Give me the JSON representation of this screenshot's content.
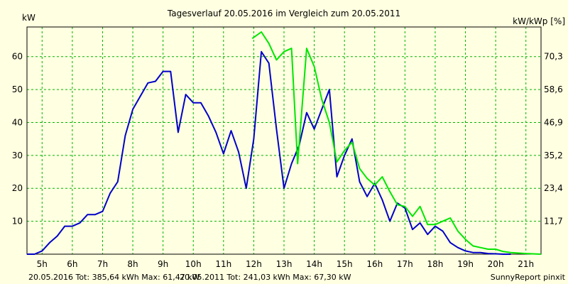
{
  "chart_data": {
    "type": "line",
    "title": "Tagesverlauf 20.05.2016 im Vergleich zum 20.05.2011",
    "ylabel_left": "kW",
    "ylabel_right": "kW/kWp [%]",
    "xlim": [
      4.5,
      21.5
    ],
    "ylim": [
      0,
      69
    ],
    "grid": true,
    "x_ticks": [
      {
        "v": 5,
        "label": "5h"
      },
      {
        "v": 6,
        "label": "6h"
      },
      {
        "v": 7,
        "label": "7h"
      },
      {
        "v": 8,
        "label": "8h"
      },
      {
        "v": 9,
        "label": "9h"
      },
      {
        "v": 10,
        "label": "10h"
      },
      {
        "v": 11,
        "label": "11h"
      },
      {
        "v": 12,
        "label": "12h"
      },
      {
        "v": 13,
        "label": "13h"
      },
      {
        "v": 14,
        "label": "14h"
      },
      {
        "v": 15,
        "label": "15h"
      },
      {
        "v": 16,
        "label": "16h"
      },
      {
        "v": 17,
        "label": "17h"
      },
      {
        "v": 18,
        "label": "18h"
      },
      {
        "v": 19,
        "label": "19h"
      },
      {
        "v": 20,
        "label": "20h"
      },
      {
        "v": 21,
        "label": "21h"
      }
    ],
    "y_ticks_left": [
      {
        "v": 10,
        "label": "10"
      },
      {
        "v": 20,
        "label": "20"
      },
      {
        "v": 30,
        "label": "30"
      },
      {
        "v": 40,
        "label": "40"
      },
      {
        "v": 50,
        "label": "50"
      },
      {
        "v": 60,
        "label": "60"
      }
    ],
    "y_ticks_right": [
      {
        "v": 10,
        "label": "11,7"
      },
      {
        "v": 20,
        "label": "23,4"
      },
      {
        "v": 30,
        "label": "35,2"
      },
      {
        "v": 40,
        "label": "46,9"
      },
      {
        "v": 50,
        "label": "58,6"
      },
      {
        "v": 60,
        "label": "70,3"
      }
    ],
    "series": [
      {
        "name": "20.05.2016",
        "color": "#0000c8",
        "points": [
          [
            4.5,
            0
          ],
          [
            4.75,
            0
          ],
          [
            5.0,
            1
          ],
          [
            5.25,
            3.5
          ],
          [
            5.5,
            5.5
          ],
          [
            5.75,
            8.5
          ],
          [
            6.0,
            8.5
          ],
          [
            6.25,
            9.5
          ],
          [
            6.5,
            12
          ],
          [
            6.75,
            12
          ],
          [
            7.0,
            13
          ],
          [
            7.25,
            18.5
          ],
          [
            7.5,
            22
          ],
          [
            7.75,
            36
          ],
          [
            8.0,
            44
          ],
          [
            8.25,
            48
          ],
          [
            8.5,
            52
          ],
          [
            8.75,
            52.5
          ],
          [
            9.0,
            55.5
          ],
          [
            9.25,
            55.5
          ],
          [
            9.5,
            37
          ],
          [
            9.75,
            48.5
          ],
          [
            10.0,
            46
          ],
          [
            10.25,
            46
          ],
          [
            10.5,
            42
          ],
          [
            10.75,
            37
          ],
          [
            11.0,
            30.5
          ],
          [
            11.25,
            37.5
          ],
          [
            11.5,
            31
          ],
          [
            11.75,
            20
          ],
          [
            12.0,
            35
          ],
          [
            12.25,
            61.5
          ],
          [
            12.5,
            58
          ],
          [
            12.75,
            38
          ],
          [
            13.0,
            20
          ],
          [
            13.25,
            27.5
          ],
          [
            13.5,
            33
          ],
          [
            13.75,
            43
          ],
          [
            14.0,
            38
          ],
          [
            14.25,
            44
          ],
          [
            14.5,
            50
          ],
          [
            14.75,
            23.5
          ],
          [
            15.0,
            30
          ],
          [
            15.25,
            35
          ],
          [
            15.5,
            22
          ],
          [
            15.75,
            17.5
          ],
          [
            16.0,
            21.5
          ],
          [
            16.25,
            16.5
          ],
          [
            16.5,
            10
          ],
          [
            16.75,
            15.5
          ],
          [
            17.0,
            14
          ],
          [
            17.25,
            7.5
          ],
          [
            17.5,
            9.5
          ],
          [
            17.75,
            6
          ],
          [
            18.0,
            8.5
          ],
          [
            18.25,
            7
          ],
          [
            18.5,
            3.5
          ],
          [
            18.75,
            2
          ],
          [
            19.0,
            1
          ],
          [
            19.25,
            0.5
          ],
          [
            19.5,
            0.5
          ],
          [
            19.75,
            0.2
          ],
          [
            20.0,
            0.1
          ],
          [
            20.25,
            0
          ],
          [
            20.5,
            0
          ]
        ]
      },
      {
        "name": "20.05.2011",
        "color": "#00e600",
        "points": [
          [
            11.95,
            65.5
          ],
          [
            12.25,
            67.5
          ],
          [
            12.5,
            64
          ],
          [
            12.75,
            59
          ],
          [
            13.0,
            61.5
          ],
          [
            13.25,
            62.5
          ],
          [
            13.45,
            27.5
          ],
          [
            13.75,
            62.5
          ],
          [
            14.0,
            57
          ],
          [
            14.25,
            47
          ],
          [
            14.5,
            40
          ],
          [
            14.75,
            28
          ],
          [
            15.0,
            31.5
          ],
          [
            15.25,
            34
          ],
          [
            15.5,
            26
          ],
          [
            15.75,
            23
          ],
          [
            16.0,
            21
          ],
          [
            16.25,
            23.5
          ],
          [
            16.5,
            19
          ],
          [
            16.75,
            15
          ],
          [
            17.0,
            14.5
          ],
          [
            17.25,
            11.5
          ],
          [
            17.5,
            14.5
          ],
          [
            17.75,
            9
          ],
          [
            18.0,
            9
          ],
          [
            18.25,
            10
          ],
          [
            18.5,
            11
          ],
          [
            18.75,
            7
          ],
          [
            19.0,
            4.5
          ],
          [
            19.25,
            2.5
          ],
          [
            19.5,
            2
          ],
          [
            19.75,
            1.5
          ],
          [
            20.0,
            1.5
          ],
          [
            20.25,
            0.8
          ],
          [
            20.5,
            0.5
          ],
          [
            21.0,
            0.2
          ],
          [
            21.5,
            0
          ]
        ]
      }
    ]
  },
  "footer": {
    "stats_2016": "20.05.2016 Tot: 385,64 kWh Max: 61,47 kW",
    "stats_2011": "20.05.2011 Tot: 241,03 kWh Max: 67,30 kW",
    "credit": "SunnyReport pinxit",
    "color_2016": "#0000c8",
    "color_2011": "#00c800"
  },
  "colors": {
    "background": "#ffffe1",
    "plot_background": "#ffffe1",
    "grid": "#00b400",
    "axis": "#000000"
  }
}
